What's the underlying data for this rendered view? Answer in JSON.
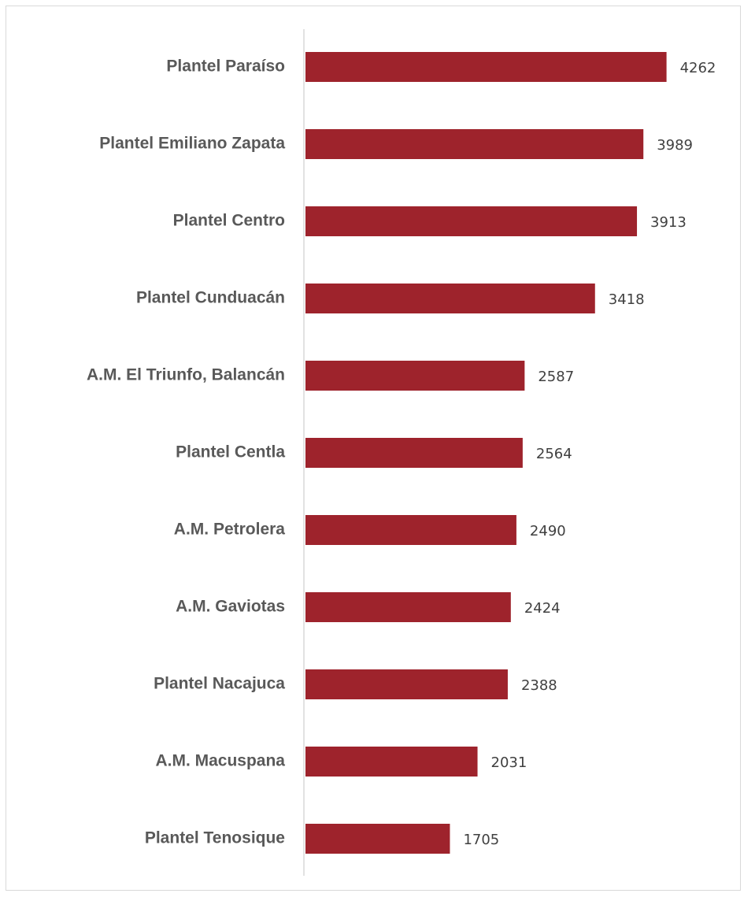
{
  "chart_data": {
    "type": "bar",
    "orientation": "horizontal",
    "categories": [
      "Plantel Paraíso",
      "Plantel Emiliano Zapata",
      "Plantel Centro",
      "Plantel Cunduacán",
      "A.M. El Triunfo, Balancán",
      "Plantel Centla",
      "A.M. Petrolera",
      "A.M. Gaviotas",
      "Plantel Nacajuca",
      "A.M. Macuspana",
      "Plantel Tenosique"
    ],
    "values": [
      4262,
      3989,
      3913,
      3418,
      2587,
      2564,
      2490,
      2424,
      2388,
      2031,
      1705
    ],
    "color": "#9e232c",
    "xlim": [
      0,
      5000
    ]
  }
}
